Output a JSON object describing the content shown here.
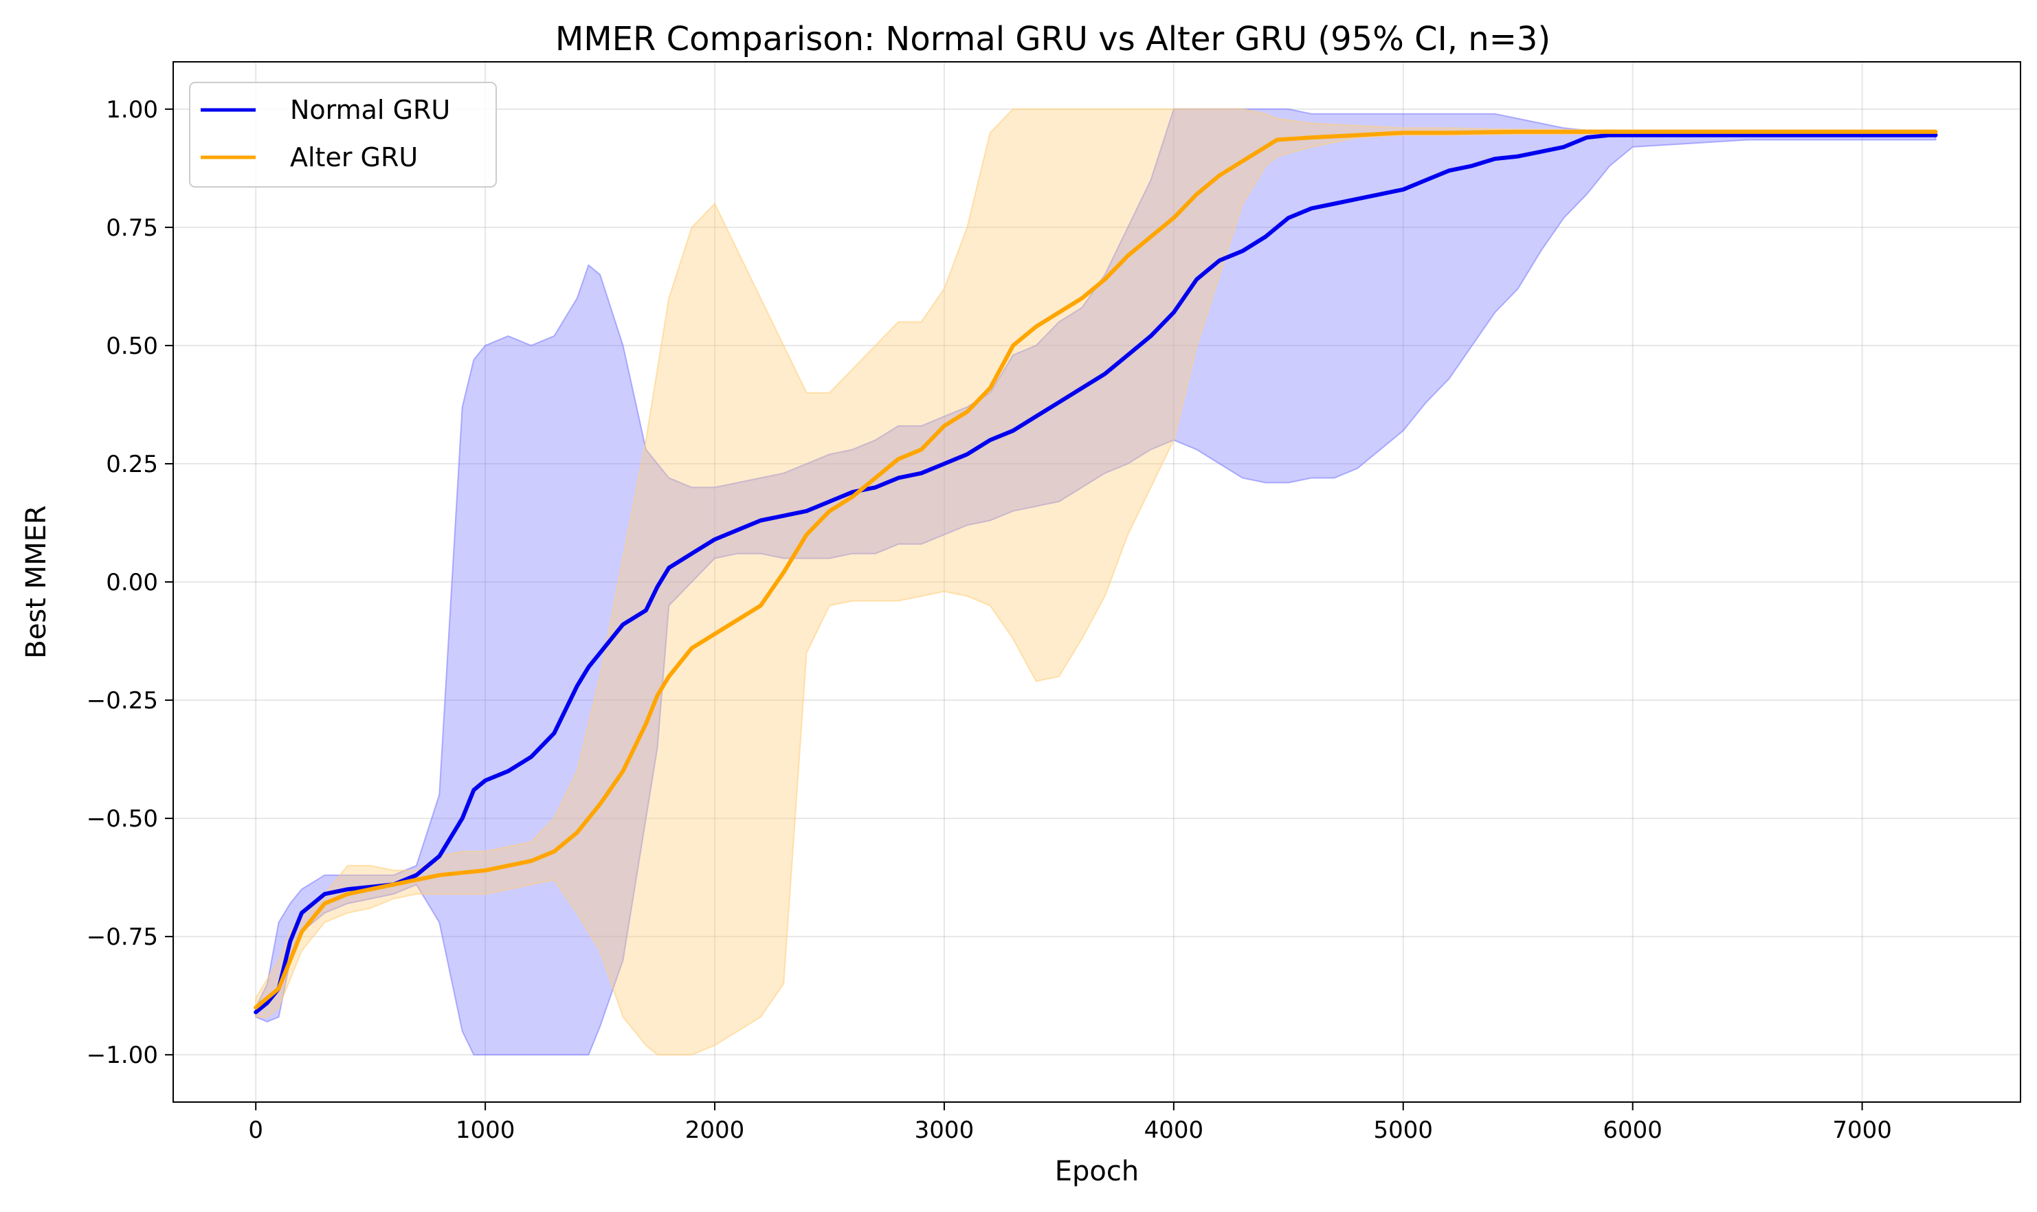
{
  "chart_data": {
    "type": "line",
    "title": "MMER Comparison: Normal GRU vs Alter GRU (95% CI, n=3)",
    "xlabel": "Epoch",
    "ylabel": "Best MMER",
    "xlim": [
      -360,
      7690
    ],
    "ylim": [
      -1.1,
      1.1
    ],
    "x_ticks": [
      0,
      1000,
      2000,
      3000,
      4000,
      5000,
      6000,
      7000
    ],
    "x_tick_labels": [
      "0",
      "1000",
      "2000",
      "3000",
      "4000",
      "5000",
      "6000",
      "7000"
    ],
    "y_ticks": [
      1.0,
      0.75,
      0.5,
      0.25,
      0.0,
      -0.25,
      -0.5,
      -0.75,
      -1.0
    ],
    "y_tick_labels": [
      "1.00",
      "0.75",
      "0.50",
      "0.25",
      "0.00",
      "−0.25",
      "−0.50",
      "−0.75",
      "−1.00"
    ],
    "grid": true,
    "legend_position": "top-left",
    "series": [
      {
        "name": "Normal GRU",
        "color": "#0000ee",
        "band_color": "#8080ff",
        "x": [
          0,
          50,
          100,
          150,
          200,
          300,
          400,
          500,
          600,
          700,
          800,
          900,
          950,
          1000,
          1100,
          1200,
          1300,
          1400,
          1450,
          1500,
          1600,
          1700,
          1750,
          1800,
          1900,
          2000,
          2100,
          2200,
          2300,
          2400,
          2500,
          2600,
          2700,
          2800,
          2900,
          3000,
          3100,
          3200,
          3300,
          3400,
          3500,
          3600,
          3700,
          3800,
          3900,
          4000,
          4100,
          4200,
          4300,
          4400,
          4500,
          4600,
          4700,
          4800,
          4900,
          5000,
          5100,
          5200,
          5300,
          5400,
          5500,
          5600,
          5700,
          5800,
          5900,
          6000,
          6500,
          7000,
          7320
        ],
        "y": [
          -0.91,
          -0.89,
          -0.86,
          -0.76,
          -0.7,
          -0.66,
          -0.65,
          -0.645,
          -0.64,
          -0.62,
          -0.58,
          -0.5,
          -0.44,
          -0.42,
          -0.4,
          -0.37,
          -0.32,
          -0.22,
          -0.18,
          -0.15,
          -0.09,
          -0.06,
          -0.01,
          0.03,
          0.06,
          0.09,
          0.11,
          0.13,
          0.14,
          0.15,
          0.17,
          0.19,
          0.2,
          0.22,
          0.23,
          0.25,
          0.27,
          0.3,
          0.32,
          0.35,
          0.38,
          0.41,
          0.44,
          0.48,
          0.52,
          0.57,
          0.64,
          0.68,
          0.7,
          0.73,
          0.77,
          0.79,
          0.8,
          0.81,
          0.82,
          0.83,
          0.85,
          0.87,
          0.88,
          0.895,
          0.9,
          0.91,
          0.92,
          0.94,
          0.945,
          0.945,
          0.945,
          0.945,
          0.945
        ],
        "lower": [
          -0.92,
          -0.93,
          -0.92,
          -0.8,
          -0.74,
          -0.7,
          -0.68,
          -0.67,
          -0.66,
          -0.64,
          -0.72,
          -0.95,
          -1.0,
          -1.0,
          -1.0,
          -1.0,
          -1.0,
          -1.0,
          -1.0,
          -0.94,
          -0.8,
          -0.5,
          -0.35,
          -0.05,
          0.0,
          0.05,
          0.06,
          0.06,
          0.05,
          0.05,
          0.05,
          0.06,
          0.06,
          0.08,
          0.08,
          0.1,
          0.12,
          0.13,
          0.15,
          0.16,
          0.17,
          0.2,
          0.23,
          0.25,
          0.28,
          0.3,
          0.28,
          0.25,
          0.22,
          0.21,
          0.21,
          0.22,
          0.22,
          0.24,
          0.28,
          0.32,
          0.38,
          0.43,
          0.5,
          0.57,
          0.62,
          0.7,
          0.77,
          0.82,
          0.88,
          0.92,
          0.935,
          0.935,
          0.935
        ],
        "upper": [
          -0.9,
          -0.85,
          -0.72,
          -0.68,
          -0.65,
          -0.62,
          -0.62,
          -0.62,
          -0.62,
          -0.6,
          -0.45,
          0.37,
          0.47,
          0.5,
          0.52,
          0.5,
          0.52,
          0.6,
          0.67,
          0.65,
          0.5,
          0.28,
          0.25,
          0.22,
          0.2,
          0.2,
          0.21,
          0.22,
          0.23,
          0.25,
          0.27,
          0.28,
          0.3,
          0.33,
          0.33,
          0.35,
          0.37,
          0.4,
          0.48,
          0.5,
          0.55,
          0.58,
          0.65,
          0.75,
          0.85,
          1.0,
          1.0,
          1.0,
          1.0,
          1.0,
          1.0,
          0.99,
          0.99,
          0.99,
          0.99,
          0.99,
          0.99,
          0.99,
          0.99,
          0.99,
          0.98,
          0.97,
          0.96,
          0.955,
          0.955,
          0.955,
          0.955,
          0.955,
          0.955
        ]
      },
      {
        "name": "Alter GRU",
        "color": "#ffa500",
        "band_color": "#ffd080",
        "x": [
          0,
          50,
          100,
          150,
          200,
          300,
          400,
          500,
          600,
          700,
          800,
          900,
          1000,
          1100,
          1200,
          1300,
          1400,
          1500,
          1600,
          1700,
          1750,
          1800,
          1900,
          2000,
          2100,
          2200,
          2300,
          2400,
          2500,
          2600,
          2700,
          2800,
          2900,
          3000,
          3100,
          3200,
          3300,
          3400,
          3500,
          3600,
          3700,
          3800,
          3900,
          4000,
          4100,
          4200,
          4300,
          4400,
          4450,
          4600,
          4800,
          5000,
          5200,
          5500,
          6000,
          6500,
          7000,
          7320
        ],
        "y": [
          -0.9,
          -0.88,
          -0.86,
          -0.8,
          -0.74,
          -0.68,
          -0.66,
          -0.65,
          -0.64,
          -0.63,
          -0.62,
          -0.615,
          -0.61,
          -0.6,
          -0.59,
          -0.57,
          -0.53,
          -0.47,
          -0.4,
          -0.3,
          -0.24,
          -0.2,
          -0.14,
          -0.11,
          -0.08,
          -0.05,
          0.02,
          0.1,
          0.15,
          0.18,
          0.22,
          0.26,
          0.28,
          0.33,
          0.36,
          0.41,
          0.5,
          0.54,
          0.57,
          0.6,
          0.64,
          0.69,
          0.73,
          0.77,
          0.82,
          0.86,
          0.89,
          0.92,
          0.935,
          0.94,
          0.945,
          0.95,
          0.95,
          0.952,
          0.952,
          0.952,
          0.952,
          0.952
        ],
        "lower": [
          -0.92,
          -0.92,
          -0.9,
          -0.84,
          -0.78,
          -0.72,
          -0.7,
          -0.69,
          -0.67,
          -0.66,
          -0.66,
          -0.66,
          -0.66,
          -0.65,
          -0.64,
          -0.63,
          -0.7,
          -0.78,
          -0.92,
          -0.98,
          -1.0,
          -1.0,
          -1.0,
          -0.98,
          -0.95,
          -0.92,
          -0.85,
          -0.15,
          -0.05,
          -0.04,
          -0.04,
          -0.04,
          -0.03,
          -0.02,
          -0.03,
          -0.05,
          -0.12,
          -0.21,
          -0.2,
          -0.12,
          -0.03,
          0.1,
          0.2,
          0.3,
          0.5,
          0.65,
          0.8,
          0.88,
          0.9,
          0.92,
          0.94,
          0.945,
          0.945,
          0.947,
          0.948,
          0.948,
          0.948,
          0.948
        ],
        "upper": [
          -0.88,
          -0.84,
          -0.8,
          -0.74,
          -0.7,
          -0.66,
          -0.6,
          -0.6,
          -0.61,
          -0.61,
          -0.58,
          -0.57,
          -0.57,
          -0.56,
          -0.55,
          -0.5,
          -0.4,
          -0.2,
          0.05,
          0.3,
          0.45,
          0.6,
          0.75,
          0.8,
          0.7,
          0.6,
          0.5,
          0.4,
          0.4,
          0.45,
          0.5,
          0.55,
          0.55,
          0.62,
          0.75,
          0.95,
          1.0,
          1.0,
          1.0,
          1.0,
          1.0,
          1.0,
          1.0,
          1.0,
          1.0,
          1.0,
          1.0,
          0.99,
          0.98,
          0.97,
          0.965,
          0.96,
          0.96,
          0.957,
          0.956,
          0.956,
          0.956,
          0.956
        ]
      }
    ]
  }
}
